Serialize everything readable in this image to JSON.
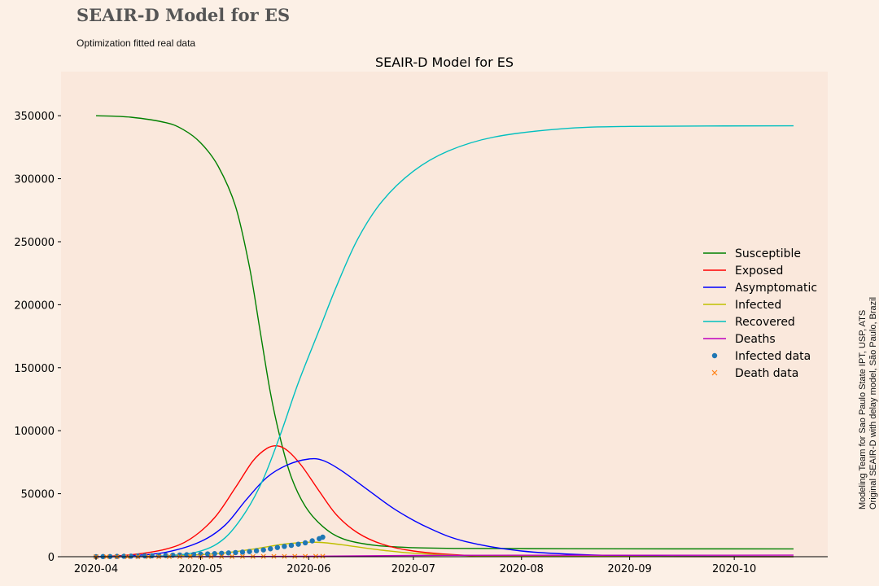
{
  "header": {
    "suptitle": "SEAIR-D Model for ES",
    "subtitle": "Optimization fitted real data"
  },
  "credits": [
    "Modeling Team for Sao Paulo State IPT, USP, ATS",
    "Original SEAIR-D with delay model, São Paulo, Brazil"
  ],
  "chart_data": {
    "type": "line",
    "title": "SEAIR-D Model for ES",
    "xlabel": "",
    "ylabel": "",
    "x_start": "2020-04-01",
    "x_end": "2020-10-18",
    "x_ticks": [
      "2020-04",
      "2020-05",
      "2020-06",
      "2020-07",
      "2020-08",
      "2020-09",
      "2020-10"
    ],
    "y_ticks": [
      0,
      50000,
      100000,
      150000,
      200000,
      250000,
      300000,
      350000
    ],
    "ylim": [
      0,
      385000
    ],
    "grid": false,
    "legend_position": "right",
    "series": [
      {
        "name": "Susceptible",
        "color": "#008000",
        "points": [
          [
            "2020-04-01",
            350000
          ],
          [
            "2020-04-11",
            348800
          ],
          [
            "2020-04-21",
            344500
          ],
          [
            "2020-04-26",
            339000
          ],
          [
            "2020-05-01",
            328500
          ],
          [
            "2020-05-06",
            310000
          ],
          [
            "2020-05-11",
            278000
          ],
          [
            "2020-05-15",
            230000
          ],
          [
            "2020-05-18",
            180000
          ],
          [
            "2020-05-21",
            130000
          ],
          [
            "2020-05-24",
            92000
          ],
          [
            "2020-05-27",
            63000
          ],
          [
            "2020-05-31",
            40000
          ],
          [
            "2020-06-05",
            24000
          ],
          [
            "2020-06-11",
            14000
          ],
          [
            "2020-06-20",
            9000
          ],
          [
            "2020-07-01",
            7200
          ],
          [
            "2020-07-15",
            6600
          ],
          [
            "2020-08-15",
            6300
          ],
          [
            "2020-10-18",
            6200
          ]
        ]
      },
      {
        "name": "Exposed",
        "color": "#ff0000",
        "points": [
          [
            "2020-04-01",
            0
          ],
          [
            "2020-04-11",
            1500
          ],
          [
            "2020-04-21",
            6000
          ],
          [
            "2020-04-28",
            14000
          ],
          [
            "2020-05-05",
            31000
          ],
          [
            "2020-05-11",
            55000
          ],
          [
            "2020-05-16",
            76000
          ],
          [
            "2020-05-20",
            86000
          ],
          [
            "2020-05-23",
            88000
          ],
          [
            "2020-05-26",
            84000
          ],
          [
            "2020-05-30",
            72000
          ],
          [
            "2020-06-04",
            52000
          ],
          [
            "2020-06-09",
            33000
          ],
          [
            "2020-06-15",
            19000
          ],
          [
            "2020-06-22",
            10000
          ],
          [
            "2020-07-01",
            4500
          ],
          [
            "2020-07-15",
            1200
          ],
          [
            "2020-08-01",
            300
          ],
          [
            "2020-10-18",
            0
          ]
        ]
      },
      {
        "name": "Asymptomatic",
        "color": "#0000ff",
        "points": [
          [
            "2020-04-01",
            0
          ],
          [
            "2020-04-11",
            800
          ],
          [
            "2020-04-21",
            3500
          ],
          [
            "2020-05-01",
            12000
          ],
          [
            "2020-05-08",
            25000
          ],
          [
            "2020-05-14",
            45000
          ],
          [
            "2020-05-20",
            63000
          ],
          [
            "2020-05-26",
            73000
          ],
          [
            "2020-06-01",
            77500
          ],
          [
            "2020-06-05",
            76500
          ],
          [
            "2020-06-10",
            69000
          ],
          [
            "2020-06-17",
            55000
          ],
          [
            "2020-06-26",
            37000
          ],
          [
            "2020-07-06",
            22000
          ],
          [
            "2020-07-16",
            12000
          ],
          [
            "2020-08-01",
            4500
          ],
          [
            "2020-08-20",
            1500
          ],
          [
            "2020-09-15",
            300
          ],
          [
            "2020-10-18",
            0
          ]
        ]
      },
      {
        "name": "Infected",
        "color": "#bfbf00",
        "points": [
          [
            "2020-04-01",
            0
          ],
          [
            "2020-04-21",
            600
          ],
          [
            "2020-05-06",
            2500
          ],
          [
            "2020-05-16",
            6000
          ],
          [
            "2020-05-25",
            10000
          ],
          [
            "2020-06-01",
            11500
          ],
          [
            "2020-06-06",
            11000
          ],
          [
            "2020-06-13",
            8500
          ],
          [
            "2020-06-22",
            5200
          ],
          [
            "2020-07-01",
            2800
          ],
          [
            "2020-07-16",
            1000
          ],
          [
            "2020-08-10",
            300
          ],
          [
            "2020-10-18",
            0
          ]
        ]
      },
      {
        "name": "Recovered",
        "color": "#00bfbf",
        "points": [
          [
            "2020-04-01",
            0
          ],
          [
            "2020-04-21",
            800
          ],
          [
            "2020-05-01",
            4500
          ],
          [
            "2020-05-08",
            15000
          ],
          [
            "2020-05-14",
            36000
          ],
          [
            "2020-05-19",
            62000
          ],
          [
            "2020-05-24",
            98000
          ],
          [
            "2020-05-29",
            138000
          ],
          [
            "2020-06-04",
            180000
          ],
          [
            "2020-06-09",
            215000
          ],
          [
            "2020-06-15",
            252000
          ],
          [
            "2020-06-22",
            282000
          ],
          [
            "2020-07-01",
            306000
          ],
          [
            "2020-07-11",
            322000
          ],
          [
            "2020-07-24",
            333000
          ],
          [
            "2020-08-12",
            339500
          ],
          [
            "2020-09-01",
            341500
          ],
          [
            "2020-10-18",
            342000
          ]
        ]
      },
      {
        "name": "Deaths",
        "color": "#bf00bf",
        "points": [
          [
            "2020-04-01",
            0
          ],
          [
            "2020-05-01",
            50
          ],
          [
            "2020-05-31",
            350
          ],
          [
            "2020-07-01",
            950
          ],
          [
            "2020-08-01",
            1150
          ],
          [
            "2020-10-18",
            1200
          ]
        ]
      }
    ],
    "scatter_series": [
      {
        "name": "Infected data",
        "color": "#1f77b4",
        "marker": "circle",
        "points": [
          [
            "2020-04-01",
            50
          ],
          [
            "2020-04-03",
            100
          ],
          [
            "2020-04-05",
            150
          ],
          [
            "2020-04-07",
            250
          ],
          [
            "2020-04-09",
            350
          ],
          [
            "2020-04-11",
            450
          ],
          [
            "2020-04-13",
            550
          ],
          [
            "2020-04-15",
            650
          ],
          [
            "2020-04-17",
            750
          ],
          [
            "2020-04-19",
            900
          ],
          [
            "2020-04-21",
            1050
          ],
          [
            "2020-04-23",
            1200
          ],
          [
            "2020-04-25",
            1350
          ],
          [
            "2020-04-27",
            1550
          ],
          [
            "2020-04-29",
            1750
          ],
          [
            "2020-05-01",
            1950
          ],
          [
            "2020-05-03",
            2200
          ],
          [
            "2020-05-05",
            2450
          ],
          [
            "2020-05-07",
            2700
          ],
          [
            "2020-05-09",
            3000
          ],
          [
            "2020-05-11",
            3300
          ],
          [
            "2020-05-13",
            3650
          ],
          [
            "2020-05-15",
            4100
          ],
          [
            "2020-05-17",
            4700
          ],
          [
            "2020-05-19",
            5400
          ],
          [
            "2020-05-21",
            6300
          ],
          [
            "2020-05-23",
            7300
          ],
          [
            "2020-05-25",
            8200
          ],
          [
            "2020-05-27",
            9000
          ],
          [
            "2020-05-29",
            9900
          ],
          [
            "2020-05-31",
            11000
          ],
          [
            "2020-06-02",
            12600
          ],
          [
            "2020-06-04",
            14300
          ],
          [
            "2020-06-05",
            15500
          ]
        ]
      },
      {
        "name": "Death data",
        "color": "#ff7f0e",
        "marker": "x",
        "points": [
          [
            "2020-04-01",
            0
          ],
          [
            "2020-04-04",
            0
          ],
          [
            "2020-04-07",
            0
          ],
          [
            "2020-04-10",
            0
          ],
          [
            "2020-04-13",
            10
          ],
          [
            "2020-04-16",
            20
          ],
          [
            "2020-04-19",
            30
          ],
          [
            "2020-04-22",
            40
          ],
          [
            "2020-04-25",
            50
          ],
          [
            "2020-04-28",
            60
          ],
          [
            "2020-05-01",
            70
          ],
          [
            "2020-05-04",
            80
          ],
          [
            "2020-05-07",
            100
          ],
          [
            "2020-05-10",
            120
          ],
          [
            "2020-05-13",
            140
          ],
          [
            "2020-05-16",
            160
          ],
          [
            "2020-05-19",
            190
          ],
          [
            "2020-05-22",
            220
          ],
          [
            "2020-05-25",
            250
          ],
          [
            "2020-05-28",
            280
          ],
          [
            "2020-05-31",
            310
          ],
          [
            "2020-06-03",
            350
          ],
          [
            "2020-06-05",
            380
          ]
        ]
      }
    ]
  }
}
